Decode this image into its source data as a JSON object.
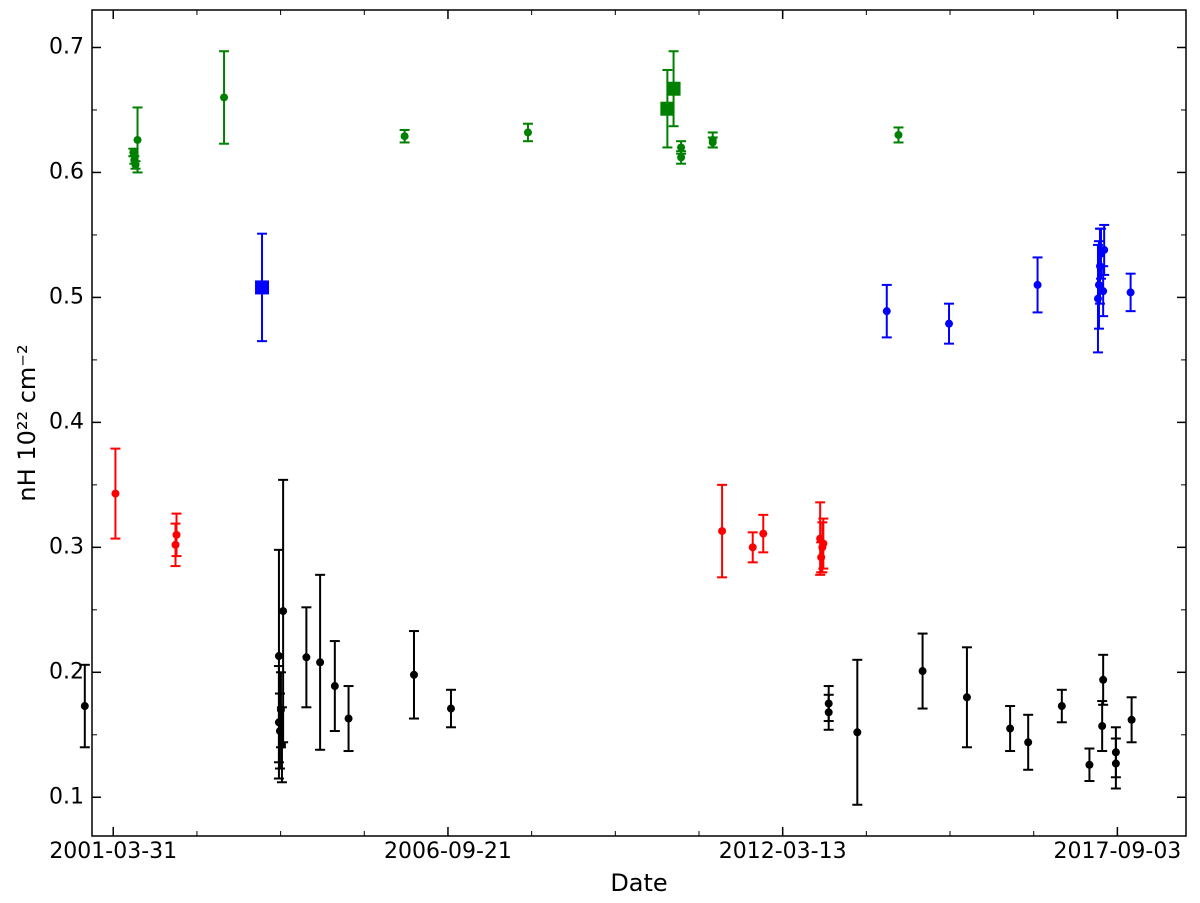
{
  "chart_data": {
    "type": "errorbar",
    "x_label": "Date",
    "y_label": "nH 10²² cm⁻²",
    "xlim": [
      "2000-11-24",
      "2018-10-18"
    ],
    "xticks": [
      "2001-03-31",
      "2006-09-21",
      "2012-03-13",
      "2017-09-03"
    ],
    "ylim": [
      0.069,
      0.73
    ],
    "yticks": [
      0.1,
      0.2,
      0.3,
      0.4,
      0.5,
      0.6,
      0.7
    ],
    "series": [
      {
        "color": "#008000",
        "marker": "circle",
        "x": [
          "2001-07-29",
          "2001-08-04",
          "2001-08-11",
          "2001-08-23",
          "2003-01-22",
          "2006-01-05",
          "2008-01-12",
          "2010-07-15",
          "2010-07-15",
          "2011-01-20",
          "2011-01-20",
          "2014-02-03"
        ],
        "values": [
          0.616,
          0.61,
          0.606,
          0.626,
          0.66,
          0.629,
          0.632,
          0.62,
          0.612,
          0.626,
          0.624,
          0.63
        ],
        "errors": [
          0.003,
          0.003,
          0.003,
          0.026,
          0.037,
          0.005,
          0.007,
          0.005,
          0.005,
          0.006,
          0.004,
          0.006
        ]
      },
      {
        "color": "#008000",
        "marker": "square",
        "x": [
          "2010-04-24",
          "2010-05-31"
        ],
        "values": [
          0.651,
          0.667
        ],
        "errors": [
          0.031,
          0.03
        ]
      },
      {
        "color": "#0000ff",
        "marker": "square",
        "x": [
          "2003-09-06"
        ],
        "values": [
          0.508
        ],
        "errors": [
          0.043
        ]
      },
      {
        "color": "#0000ff",
        "marker": "circle",
        "x": [
          "2013-11-25",
          "2014-12-02",
          "2016-05-14",
          "2017-05-10",
          "2017-05-16",
          "2017-05-22",
          "2017-05-28",
          "2017-06-10",
          "2017-06-16",
          "2017-11-21"
        ],
        "values": [
          0.489,
          0.479,
          0.51,
          0.499,
          0.51,
          0.525,
          0.535,
          0.505,
          0.538,
          0.504
        ],
        "errors": [
          0.021,
          0.016,
          0.022,
          0.043,
          0.035,
          0.03,
          0.02,
          0.02,
          0.02,
          0.015
        ]
      },
      {
        "color": "#ff0000",
        "marker": "circle",
        "x": [
          "2001-04-13",
          "2002-04-07",
          "2002-04-13",
          "2011-03-17",
          "2011-09-16",
          "2011-11-18",
          "2012-10-23",
          "2012-10-29",
          "2012-11-05",
          "2012-11-11"
        ],
        "values": [
          0.343,
          0.302,
          0.31,
          0.313,
          0.3,
          0.311,
          0.307,
          0.292,
          0.3,
          0.303
        ],
        "errors": [
          0.036,
          0.017,
          0.017,
          0.037,
          0.012,
          0.015,
          0.029,
          0.012,
          0.02,
          0.02
        ]
      },
      {
        "color": "#000000",
        "marker": "circle",
        "x": [
          "2000-10-12",
          "2003-12-16",
          "2003-12-16",
          "2003-12-22",
          "2003-12-28",
          "2004-01-03",
          "2004-01-10",
          "2004-05-28",
          "2004-08-18",
          "2004-11-14",
          "2005-02-04",
          "2006-03-02",
          "2006-10-09",
          "2012-12-13",
          "2012-12-13",
          "2013-06-02",
          "2014-06-27",
          "2015-03-19",
          "2015-12-02",
          "2016-03-19",
          "2016-10-06",
          "2017-03-20",
          "2017-06-04",
          "2017-06-10",
          "2017-08-25",
          "2017-08-25",
          "2017-11-27"
        ],
        "values": [
          0.173,
          0.16,
          0.213,
          0.153,
          0.17,
          0.142,
          0.249,
          0.212,
          0.208,
          0.189,
          0.163,
          0.198,
          0.171,
          0.175,
          0.168,
          0.152,
          0.201,
          0.18,
          0.155,
          0.144,
          0.173,
          0.126,
          0.157,
          0.194,
          0.136,
          0.127,
          0.162
        ],
        "errors": [
          0.033,
          0.045,
          0.085,
          0.03,
          0.03,
          0.03,
          0.105,
          0.04,
          0.07,
          0.036,
          0.026,
          0.035,
          0.015,
          0.014,
          0.014,
          0.058,
          0.03,
          0.04,
          0.018,
          0.022,
          0.013,
          0.013,
          0.02,
          0.02,
          0.02,
          0.02,
          0.018
        ]
      }
    ]
  }
}
